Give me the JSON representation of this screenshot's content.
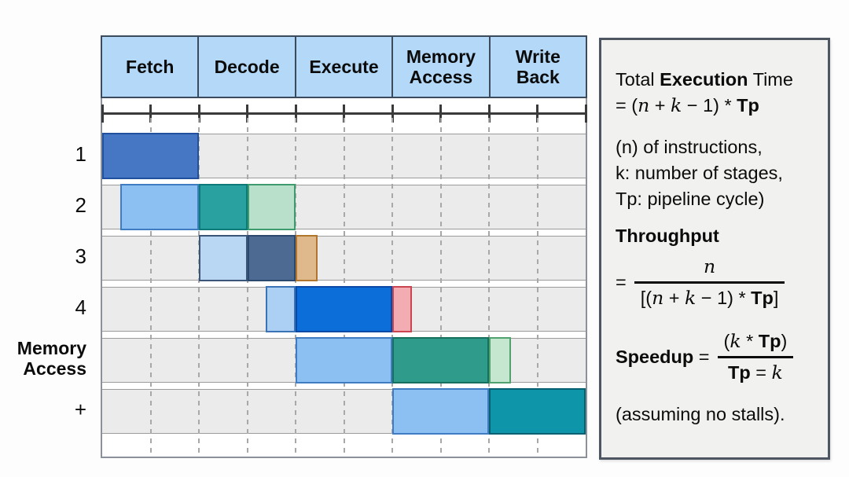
{
  "colors": {
    "page_bg": "#fdfdfd",
    "header_fill": "#b3d8f8",
    "header_border": "#3c4a5e",
    "band_fill": "#ebebeb",
    "band_border": "#9b9b9b",
    "grid_dash": "#a8a8a8",
    "ruler_line": "#3a3a3a",
    "chart_border": "#8c9099",
    "panel_bg": "#f1f1ef",
    "panel_border": "#4e5662"
  },
  "chart_data": {
    "type": "pipeline-gantt",
    "stages": [
      "Fetch",
      "Decode",
      "Execute",
      "Memory Access",
      "Write Back"
    ],
    "slots_per_stage": 2,
    "total_slots": 10,
    "rows": [
      {
        "label": "1",
        "label_bold": false,
        "bars": [
          {
            "start": 0,
            "end": 2,
            "fill": "#4677c4",
            "border": "#21509e"
          }
        ]
      },
      {
        "label": "2",
        "label_bold": false,
        "bars": [
          {
            "start": 0.37,
            "end": 2,
            "fill": "#8dc0f2",
            "border": "#407cc2"
          },
          {
            "start": 2,
            "end": 3,
            "fill": "#2aa1a1",
            "border": "#0d7a7a"
          },
          {
            "start": 3,
            "end": 4,
            "fill": "#b8e0ca",
            "border": "#3e9b6d"
          }
        ]
      },
      {
        "label": "3",
        "label_bold": false,
        "bars": [
          {
            "start": 2,
            "end": 3,
            "fill": "#b9d6f2",
            "border": "#3a5578"
          },
          {
            "start": 3,
            "end": 4,
            "fill": "#4c6a92",
            "border": "#2c486c"
          },
          {
            "start": 4,
            "end": 4.45,
            "fill": "#dfb98b",
            "border": "#b0762e"
          }
        ]
      },
      {
        "label": "4",
        "label_bold": false,
        "bars": [
          {
            "start": 3.39,
            "end": 4,
            "fill": "#accff4",
            "border": "#3c72b6"
          },
          {
            "start": 4,
            "end": 6,
            "fill": "#0c6fd9",
            "border": "#0a4aa6"
          },
          {
            "start": 6,
            "end": 6.4,
            "fill": "#f3acb2",
            "border": "#ca454f"
          }
        ]
      },
      {
        "label": "Memory Access",
        "label_bold": true,
        "bars": [
          {
            "start": 4,
            "end": 6,
            "fill": "#8dc0f2",
            "border": "#407cc2"
          },
          {
            "start": 6,
            "end": 8,
            "fill": "#2f9c8b",
            "border": "#17705e"
          },
          {
            "start": 8,
            "end": 8.45,
            "fill": "#c5e7d0",
            "border": "#4fa26e"
          }
        ]
      },
      {
        "label": "+",
        "label_bold": false,
        "bars": [
          {
            "start": 6,
            "end": 8,
            "fill": "#8dc0f2",
            "border": "#407cc2"
          },
          {
            "start": 8,
            "end": 10,
            "fill": "#0e95a9",
            "border": "#07606f"
          }
        ]
      }
    ]
  },
  "panel": {
    "title": [
      [
        "Total ",
        ""
      ],
      [
        "Execution",
        "b"
      ],
      [
        " Time",
        ""
      ]
    ],
    "title_eq": [
      [
        "= (",
        ""
      ],
      [
        "n",
        "i"
      ],
      [
        " + ",
        ""
      ],
      [
        "k",
        "i"
      ],
      [
        " − 1) * ",
        ""
      ],
      [
        "Tp",
        "b"
      ]
    ],
    "defs": [
      [
        [
          "(n) of instructions,",
          ""
        ]
      ],
      [
        [
          "k: number of stages,",
          ""
        ]
      ],
      [
        [
          "Tp: pipeline cycle)",
          ""
        ]
      ]
    ],
    "throughput_label": [
      [
        "Throughput",
        "b"
      ]
    ],
    "throughput_eq": "=",
    "throughput_num": [
      [
        "n",
        "i"
      ]
    ],
    "throughput_den": [
      [
        "[(",
        ""
      ],
      [
        "n",
        "i"
      ],
      [
        " + ",
        ""
      ],
      [
        "k",
        "i"
      ],
      [
        " − 1) * ",
        ""
      ],
      [
        "Tp",
        "b"
      ],
      [
        "]",
        ""
      ]
    ],
    "speedup_label": [
      [
        "Speedup",
        "b"
      ],
      [
        " = ",
        ""
      ]
    ],
    "speedup_num": [
      [
        "(",
        ""
      ],
      [
        "k",
        "i"
      ],
      [
        " * ",
        ""
      ],
      [
        "Tp",
        "b"
      ],
      [
        ")",
        ""
      ]
    ],
    "speedup_den": [
      [
        "Tp",
        "b"
      ],
      [
        " = ",
        ""
      ],
      [
        "k",
        "i"
      ]
    ],
    "footnote": [
      [
        "(assuming no stalls).",
        ""
      ]
    ]
  }
}
